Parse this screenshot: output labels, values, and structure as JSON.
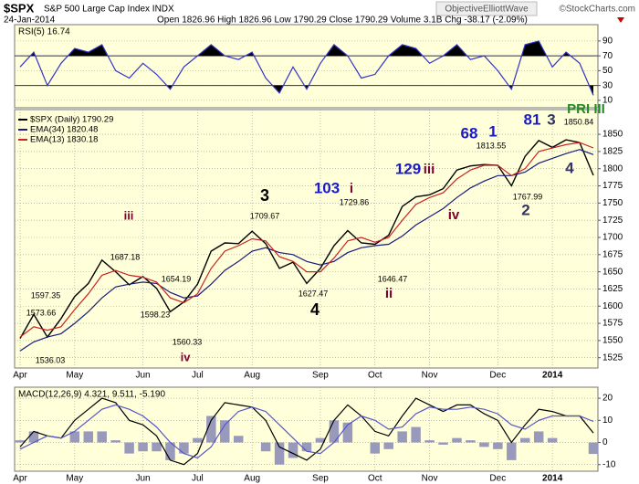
{
  "header": {
    "symbol": "$SPX",
    "name": "S&P 500 Large Cap Index INDX",
    "date": "24-Jan-2014",
    "quote": "Open 1826.96 High 1826.96 Low 1790.29 Close 1790.29 Volume 3.1B Chg -38.17 (-2.09%)",
    "author": "ObjectiveElliottWave",
    "source": "©StockCharts.com"
  },
  "chart_data": [
    {
      "type": "line",
      "title": "RSI(5) 16.74",
      "ylim": [
        0,
        112
      ],
      "yticks": [
        10,
        30,
        50,
        70,
        90
      ],
      "grid": true,
      "levels": [
        30,
        70
      ],
      "fill_outside_levels": true,
      "series": [
        {
          "color": "#3333cc",
          "values": [
            55,
            75,
            30,
            60,
            80,
            75,
            85,
            50,
            40,
            60,
            45,
            25,
            55,
            70,
            85,
            70,
            65,
            75,
            40,
            20,
            55,
            25,
            60,
            85,
            70,
            40,
            45,
            70,
            85,
            80,
            60,
            70,
            85,
            65,
            70,
            50,
            25,
            85,
            90,
            55,
            75,
            60,
            16.74
          ]
        }
      ]
    },
    {
      "type": "line",
      "ylim": [
        1510,
        1886
      ],
      "yticks": [
        1525,
        1550,
        1575,
        1600,
        1625,
        1650,
        1675,
        1700,
        1725,
        1750,
        1775,
        1800,
        1825,
        1850
      ],
      "grid": true,
      "categories": [
        "Apr",
        null,
        null,
        null,
        "May",
        null,
        null,
        null,
        null,
        "Jun",
        null,
        null,
        null,
        "Jul",
        null,
        null,
        null,
        "Aug",
        null,
        null,
        null,
        null,
        "Sep",
        null,
        null,
        null,
        "Oct",
        null,
        null,
        null,
        "Nov",
        null,
        null,
        null,
        null,
        "Dec",
        null,
        null,
        null,
        "2014",
        null,
        null,
        null
      ],
      "series": [
        {
          "name": "$SPX (Daily) 1790.29",
          "color": "#000000",
          "values": [
            1553,
            1588,
            1555,
            1582,
            1614,
            1633,
            1667,
            1650,
            1631,
            1643,
            1626,
            1592,
            1606,
            1632,
            1680,
            1692,
            1691,
            1709,
            1691,
            1655,
            1664,
            1633,
            1655,
            1688,
            1710,
            1692,
            1690,
            1703,
            1745,
            1759,
            1762,
            1771,
            1798,
            1804,
            1806,
            1805,
            1775,
            1818,
            1841,
            1831,
            1842,
            1838,
            1790.29
          ]
        },
        {
          "name": "EMA(34) 1820.48",
          "color": "#1a1a80",
          "values": [
            1535,
            1548,
            1555,
            1560,
            1575,
            1592,
            1612,
            1628,
            1632,
            1635,
            1633,
            1620,
            1612,
            1615,
            1632,
            1652,
            1665,
            1680,
            1685,
            1678,
            1675,
            1665,
            1660,
            1665,
            1678,
            1685,
            1688,
            1690,
            1702,
            1718,
            1730,
            1742,
            1758,
            1772,
            1782,
            1790,
            1790,
            1795,
            1808,
            1815,
            1822,
            1828,
            1820.48
          ]
        },
        {
          "name": "EMA(13) 1830.18",
          "color": "#cc2222",
          "values": [
            1555,
            1570,
            1565,
            1570,
            1595,
            1618,
            1645,
            1652,
            1645,
            1642,
            1635,
            1612,
            1605,
            1618,
            1655,
            1680,
            1688,
            1698,
            1695,
            1672,
            1665,
            1650,
            1650,
            1670,
            1695,
            1700,
            1693,
            1700,
            1725,
            1748,
            1758,
            1765,
            1785,
            1798,
            1805,
            1805,
            1790,
            1800,
            1825,
            1830,
            1835,
            1838,
            1830.18
          ]
        }
      ],
      "annotations": [
        {
          "text": "1573.66",
          "color": "#000000"
        },
        {
          "text": "1597.35",
          "color": "#000000"
        },
        {
          "text": "1536.03",
          "color": "#000000"
        },
        {
          "text": "1687.18",
          "color": "#000000"
        },
        {
          "text": "1654.19",
          "color": "#000000"
        },
        {
          "text": "1598.23",
          "color": "#000000"
        },
        {
          "text": "1560.33",
          "color": "#000000"
        },
        {
          "text": "1709.67",
          "color": "#000000"
        },
        {
          "text": "1627.47",
          "color": "#000000"
        },
        {
          "text": "1729.86",
          "color": "#000000"
        },
        {
          "text": "1646.47",
          "color": "#000000"
        },
        {
          "text": "1813.55",
          "color": "#000000"
        },
        {
          "text": "1767.99",
          "color": "#000000"
        },
        {
          "text": "1850.84",
          "color": "#000000"
        },
        {
          "text": "iii",
          "color": "#800033"
        },
        {
          "text": "iv",
          "color": "#800033"
        },
        {
          "text": "3",
          "color": "#000000"
        },
        {
          "text": "4",
          "color": "#000000"
        },
        {
          "text": "103",
          "color": "#1a1acc"
        },
        {
          "text": "i",
          "color": "#800033"
        },
        {
          "text": "129",
          "color": "#1a1acc"
        },
        {
          "text": "iii",
          "color": "#800033"
        },
        {
          "text": "iv",
          "color": "#800033"
        },
        {
          "text": "ii",
          "color": "#800033"
        },
        {
          "text": "68",
          "color": "#1a1acc"
        },
        {
          "text": "1",
          "color": "#1a1acc"
        },
        {
          "text": "2",
          "color": "#333366"
        },
        {
          "text": "81",
          "color": "#1a1acc"
        },
        {
          "text": "3",
          "color": "#333366"
        },
        {
          "text": "4",
          "color": "#333366"
        },
        {
          "text": "PRI III",
          "color": "#228b22"
        }
      ]
    },
    {
      "type": "line",
      "title": "MACD(12,26,9) 4.321, 9.511, -5.190",
      "ylim": [
        -13,
        25
      ],
      "yticks": [
        -10,
        0,
        10,
        20
      ],
      "grid": true,
      "categories": [
        "Apr",
        null,
        null,
        null,
        "May",
        null,
        null,
        null,
        null,
        "Jun",
        null,
        null,
        null,
        "Jul",
        null,
        null,
        null,
        "Aug",
        null,
        null,
        null,
        null,
        "Sep",
        null,
        null,
        null,
        "Oct",
        null,
        null,
        null,
        "Nov",
        null,
        null,
        null,
        null,
        "Dec",
        null,
        null,
        null,
        "2014",
        null,
        null,
        null
      ],
      "series": [
        {
          "type": "bar",
          "color": "#9999bb",
          "values": [
            1,
            5,
            0,
            0,
            5,
            5,
            5,
            1,
            -5,
            -4,
            -4,
            -8,
            -5,
            2,
            12,
            10,
            3,
            0,
            -4,
            -10,
            -7,
            -4,
            2,
            10,
            9,
            0,
            -5,
            -3,
            5,
            7,
            1,
            -1,
            2,
            1,
            -2,
            -3,
            -8,
            2,
            5,
            2,
            0,
            0,
            -5.19
          ]
        },
        {
          "color": "#000000",
          "values": [
            -2,
            5,
            3,
            2,
            10,
            15,
            20,
            18,
            10,
            8,
            3,
            -8,
            -10,
            -5,
            10,
            18,
            17,
            16,
            10,
            -2,
            -5,
            -8,
            -3,
            10,
            17,
            12,
            5,
            3,
            12,
            20,
            17,
            14,
            17,
            17,
            13,
            10,
            0,
            8,
            15,
            14,
            12,
            12,
            4.321
          ]
        },
        {
          "color": "#5555cc",
          "values": [
            -3,
            0,
            3,
            2,
            5,
            10,
            15,
            17,
            15,
            12,
            7,
            0,
            -5,
            -7,
            -2,
            8,
            14,
            16,
            14,
            8,
            2,
            -4,
            -5,
            0,
            8,
            12,
            10,
            6,
            7,
            13,
            16,
            15,
            15,
            16,
            15,
            13,
            8,
            6,
            10,
            12,
            12,
            12,
            9.511
          ]
        }
      ]
    }
  ]
}
